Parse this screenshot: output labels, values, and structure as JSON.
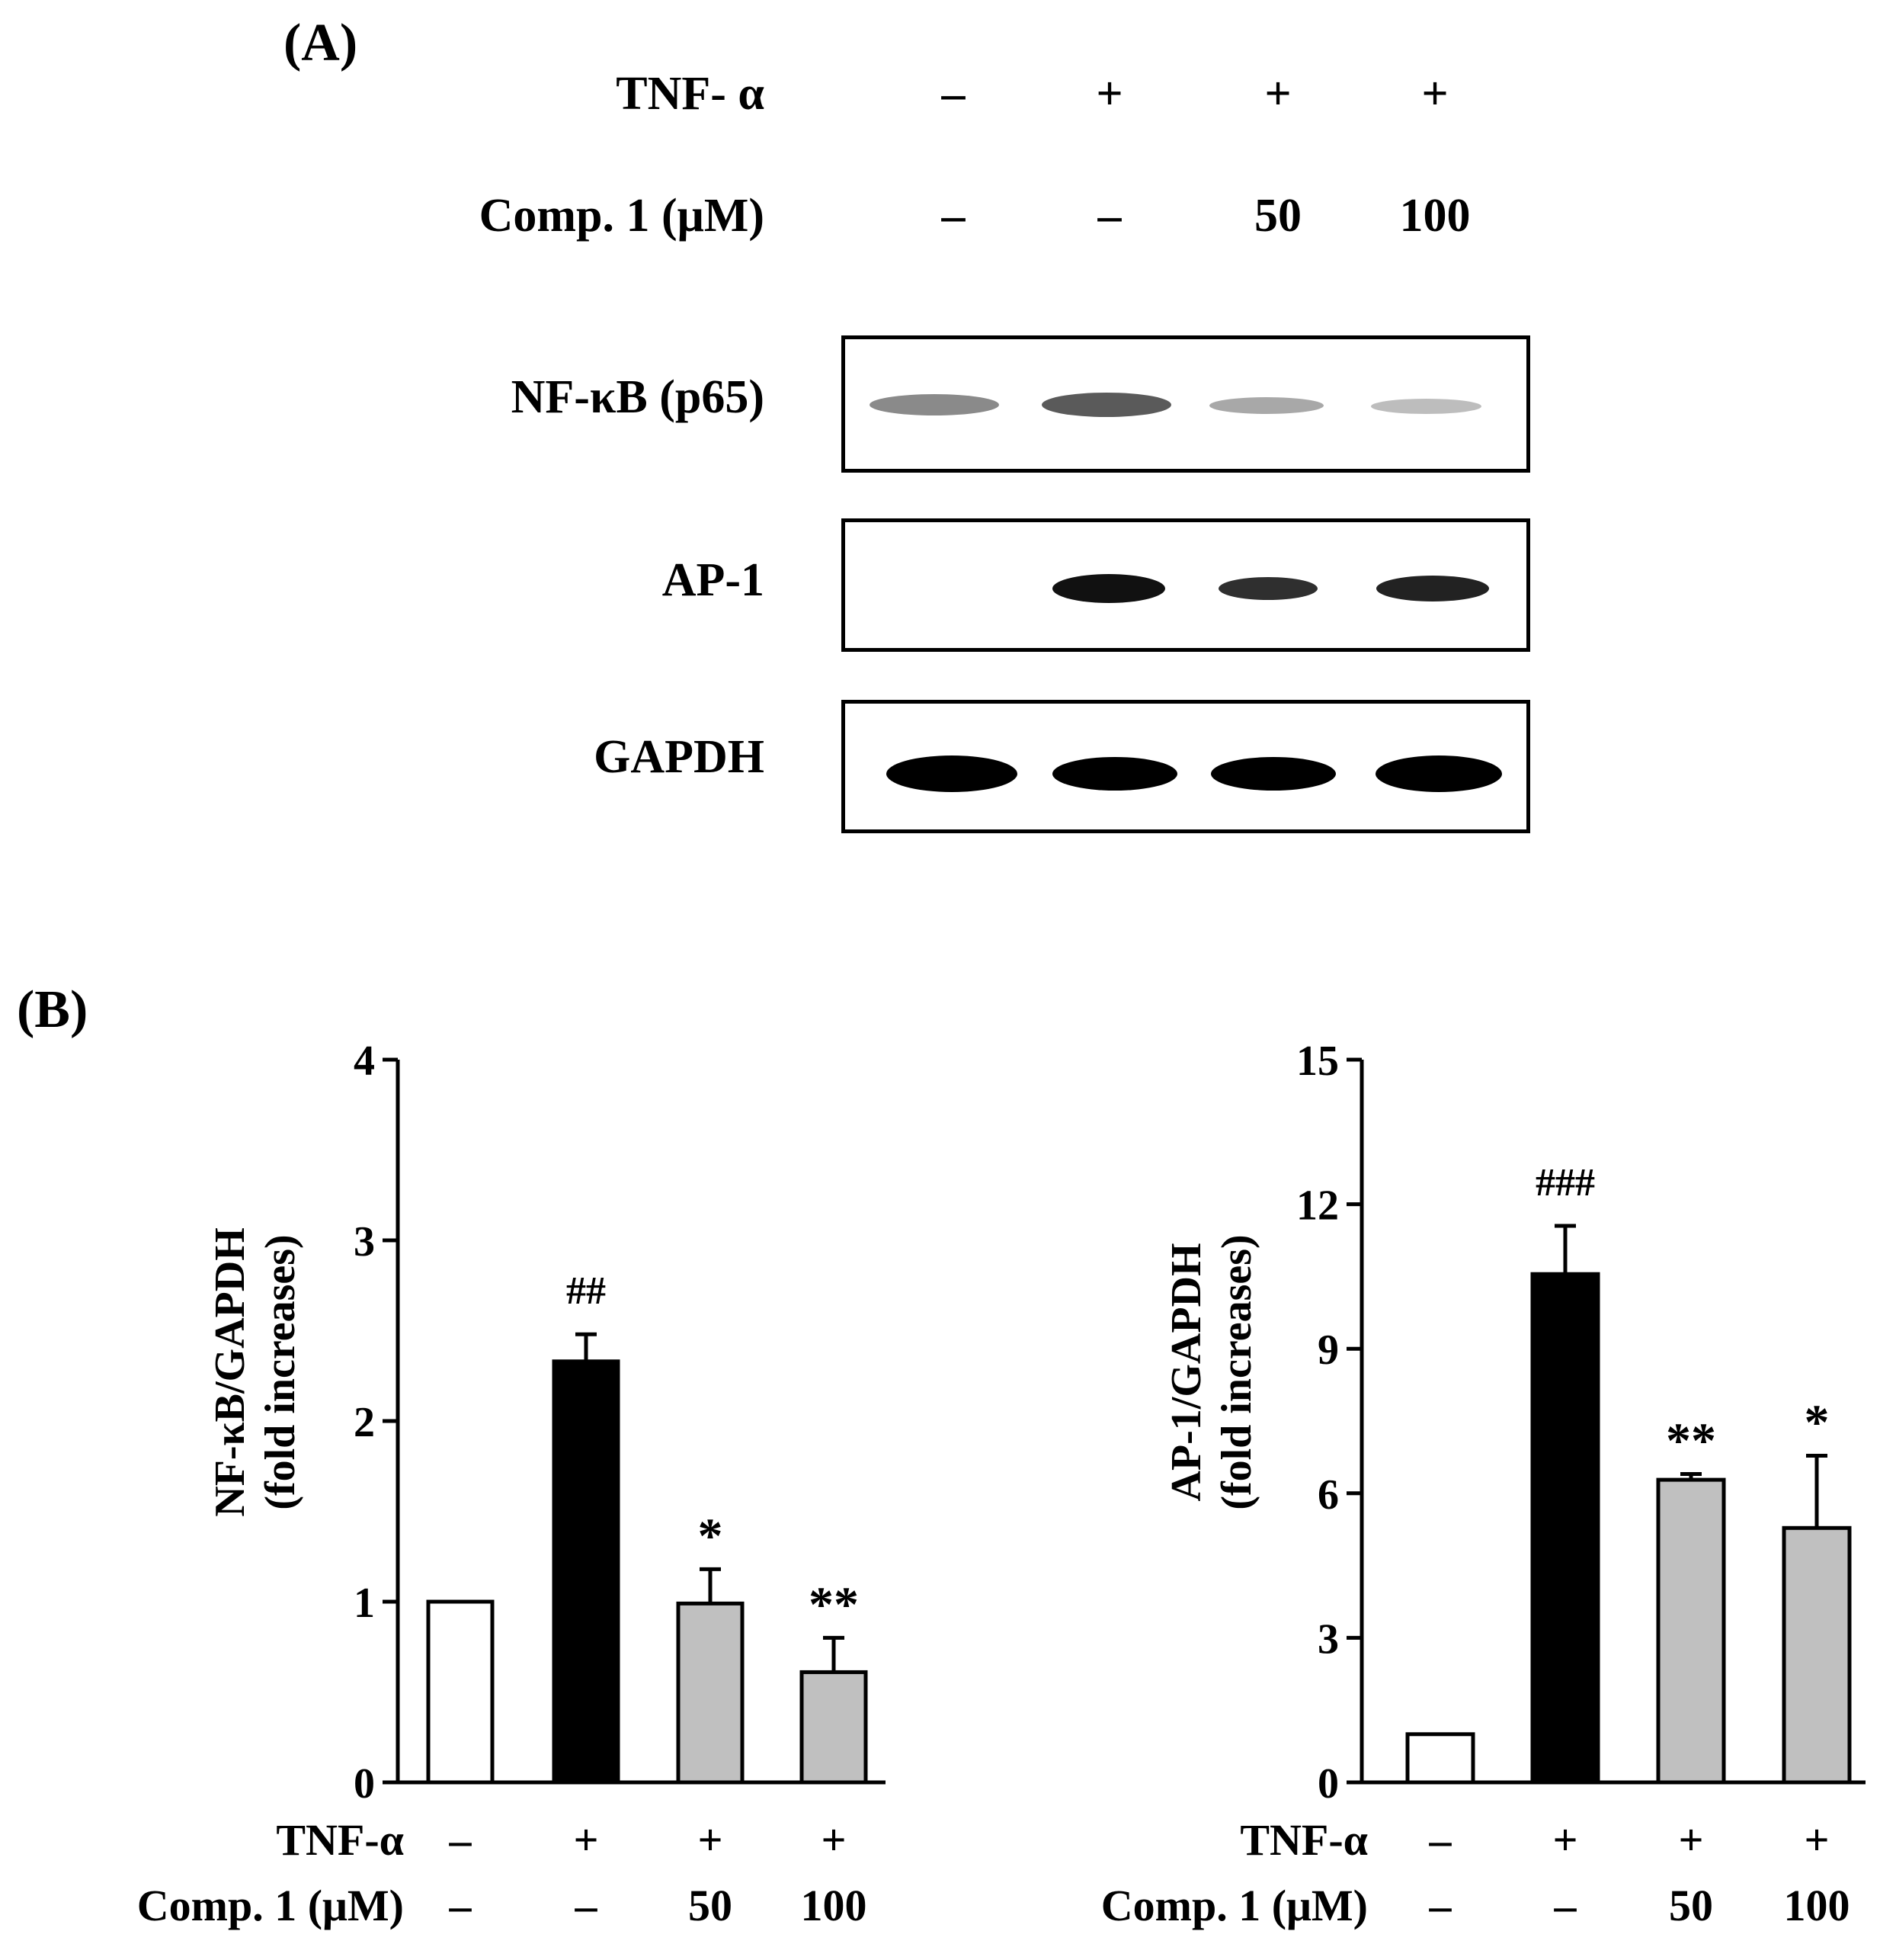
{
  "panel_a": {
    "label": "(A)",
    "rows": [
      {
        "label": "TNF- α",
        "values": [
          "–",
          "+",
          "+",
          "+"
        ]
      },
      {
        "label": "Comp. 1 (μM)",
        "values": [
          "–",
          "–",
          "50",
          "100"
        ]
      }
    ],
    "blots": [
      {
        "label": "NF-κB (p65)",
        "band_intensity": [
          0.45,
          0.6,
          0.3,
          0.25
        ]
      },
      {
        "label": "AP-1",
        "band_intensity": [
          0.0,
          0.95,
          0.75,
          0.8
        ]
      },
      {
        "label": "GAPDH",
        "band_intensity": [
          1.0,
          1.0,
          1.0,
          1.0
        ]
      }
    ]
  },
  "panel_b": {
    "label": "(B)"
  },
  "chart_data": [
    {
      "type": "bar",
      "ylabel": "NF-κB/GAPDH",
      "ylabel2": "(fold increases)",
      "ylim": [
        0,
        4
      ],
      "yticks": [
        "0",
        "1",
        "2",
        "3",
        "4"
      ],
      "values": [
        1.0,
        2.33,
        0.99,
        0.61
      ],
      "errors": [
        0,
        0.15,
        0.19,
        0.19
      ],
      "bar_colors": [
        "#ffffff",
        "#000000",
        "#c0c0c0",
        "#c0c0c0"
      ],
      "annotations": [
        "",
        "##",
        "*",
        "**"
      ],
      "conditions": [
        {
          "label": "TNF-α",
          "values": [
            "–",
            "+",
            "+",
            "+"
          ]
        },
        {
          "label": "Comp. 1 (μM)",
          "values": [
            "–",
            "–",
            "50",
            "100"
          ]
        }
      ]
    },
    {
      "type": "bar",
      "ylabel": "AP-1/GAPDH",
      "ylabel2": "(fold increases)",
      "ylim": [
        0,
        15
      ],
      "yticks": [
        "0",
        "3",
        "6",
        "9",
        "12",
        "15"
      ],
      "values": [
        1.0,
        10.55,
        6.28,
        5.28
      ],
      "errors": [
        0,
        1.0,
        0.12,
        1.5
      ],
      "bar_colors": [
        "#ffffff",
        "#000000",
        "#c0c0c0",
        "#c0c0c0"
      ],
      "annotations": [
        "",
        "###",
        "**",
        "*"
      ],
      "conditions": [
        {
          "label": "TNF-α",
          "values": [
            "–",
            "+",
            "+",
            "+"
          ]
        },
        {
          "label": "Comp. 1 (μM)",
          "values": [
            "–",
            "–",
            "50",
            "100"
          ]
        }
      ]
    }
  ]
}
